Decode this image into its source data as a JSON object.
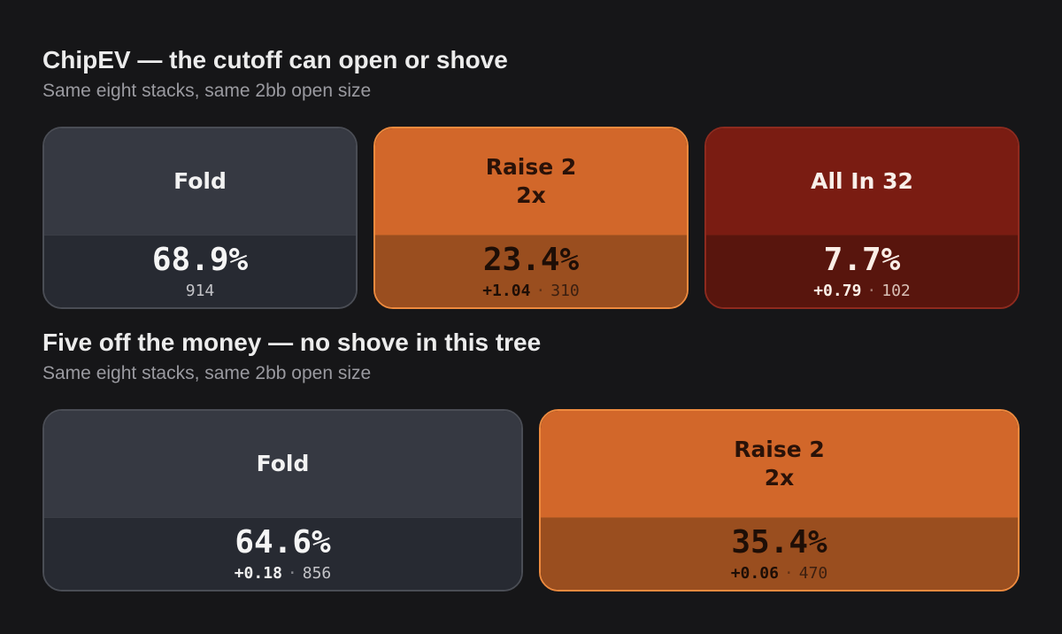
{
  "sections": [
    {
      "title": "ChipEV — the cutoff can open or shove",
      "subtitle": "Same eight stacks, same 2bb open size",
      "actions": [
        {
          "label": "Fold",
          "sublabel": "",
          "pct": "68.9%",
          "ev": "",
          "sep": "",
          "count": "914",
          "style": "fold"
        },
        {
          "label": "Raise 2",
          "sublabel": "2x",
          "pct": "23.4%",
          "ev": "+1.04",
          "sep": "·",
          "count": "310",
          "style": "raise"
        },
        {
          "label": "All In 32",
          "sublabel": "",
          "pct": "7.7%",
          "ev": "+0.79",
          "sep": "·",
          "count": "102",
          "style": "allin"
        }
      ]
    },
    {
      "title": "Five off the money — no shove in this tree",
      "subtitle": "Same eight stacks, same 2bb open size",
      "actions": [
        {
          "label": "Fold",
          "sublabel": "",
          "pct": "64.6%",
          "ev": "+0.18",
          "sep": "·",
          "count": "856",
          "style": "fold"
        },
        {
          "label": "Raise 2",
          "sublabel": "2x",
          "pct": "35.4%",
          "ev": "+0.06",
          "sep": "·",
          "count": "470",
          "style": "raise"
        }
      ]
    }
  ],
  "colors": {
    "background": "#161618",
    "fold": "#363942",
    "raise": "#d2672a",
    "allin": "#7a1c12"
  }
}
